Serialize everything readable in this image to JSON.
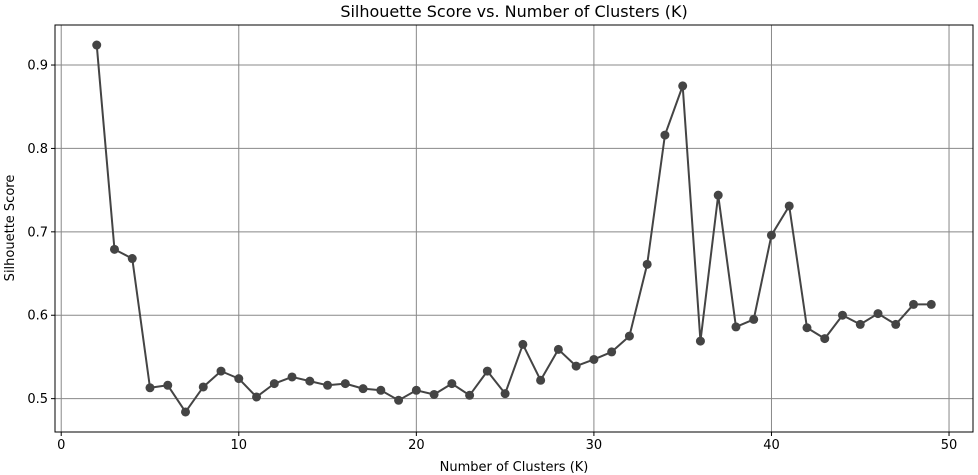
{
  "chart_data": {
    "type": "line",
    "title": "Silhouette Score vs. Number of Clusters (K)",
    "xlabel": "Number of Clusters (K)",
    "ylabel": "Silhouette Score",
    "xlim": [
      -0.35,
      51.35
    ],
    "ylim": [
      0.46,
      0.948
    ],
    "xticks": [
      0,
      10,
      20,
      30,
      40,
      50
    ],
    "yticks": [
      0.5,
      0.6,
      0.7,
      0.8,
      0.9
    ],
    "ytick_labels": [
      "0.5",
      "0.6",
      "0.7",
      "0.8",
      "0.9"
    ],
    "grid": true,
    "legend": "none",
    "line_color": "#444444",
    "grid_color": "#888888",
    "series": [
      {
        "x": [
          2,
          3,
          4,
          5,
          6,
          7,
          8,
          9,
          10,
          11,
          12,
          13,
          14,
          15,
          16,
          17,
          18,
          19,
          20,
          21,
          22,
          23,
          24,
          25,
          26,
          27,
          28,
          29,
          30,
          31,
          32,
          33,
          34,
          35,
          36,
          37,
          38,
          39,
          40,
          41,
          42,
          43,
          44,
          45,
          46,
          47,
          48,
          49
        ],
        "values": [
          0.924,
          0.679,
          0.668,
          0.513,
          0.516,
          0.484,
          0.514,
          0.533,
          0.524,
          0.502,
          0.518,
          0.526,
          0.521,
          0.516,
          0.518,
          0.512,
          0.51,
          0.498,
          0.51,
          0.505,
          0.518,
          0.504,
          0.533,
          0.506,
          0.565,
          0.522,
          0.559,
          0.539,
          0.547,
          0.556,
          0.575,
          0.661,
          0.816,
          0.875,
          0.569,
          0.744,
          0.586,
          0.595,
          0.696,
          0.731,
          0.585,
          0.572,
          0.6,
          0.589,
          0.602,
          0.589,
          0.613,
          0.613
        ]
      }
    ]
  }
}
